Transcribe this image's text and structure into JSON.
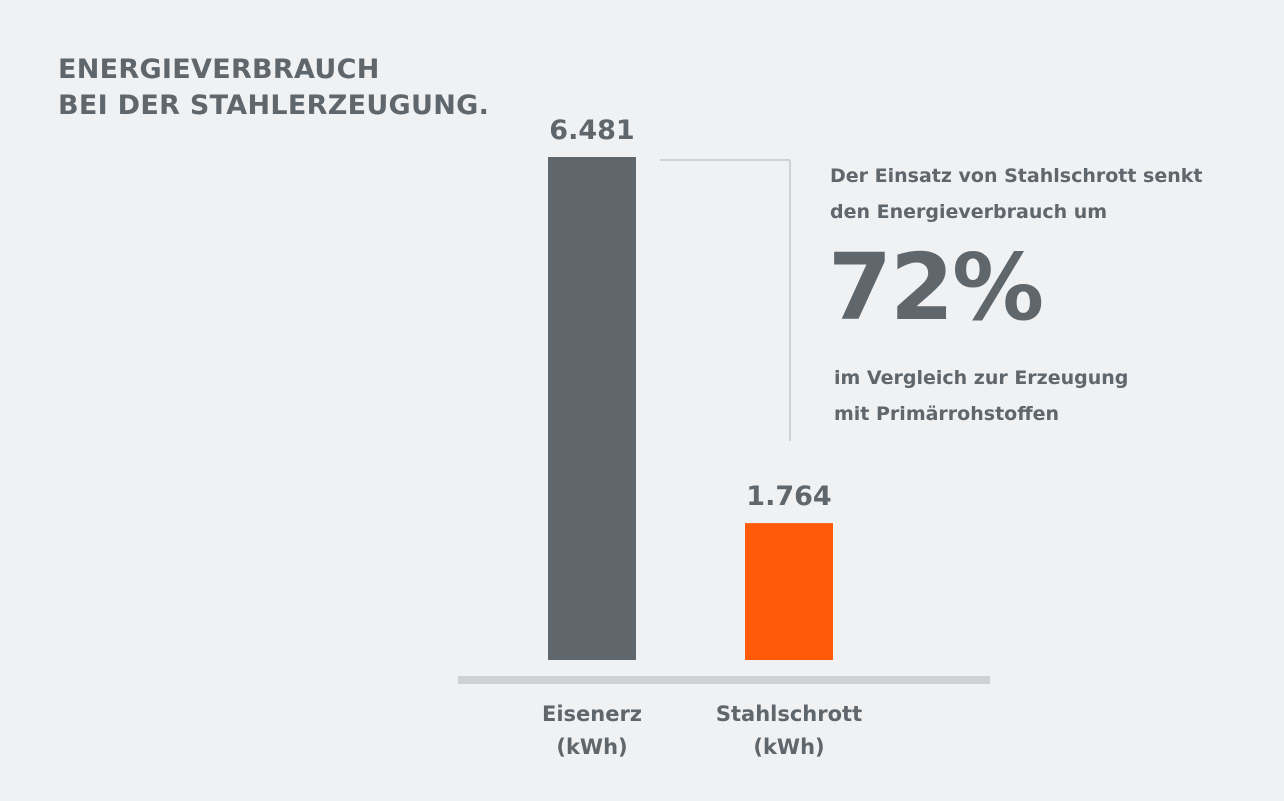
{
  "chart_data": {
    "type": "bar",
    "title": [
      "ENERGIEVERBRAUCH",
      "BEI DER STAHLERZEUGUNG."
    ],
    "categories": [
      [
        "Eisenerz",
        "(kWh)"
      ],
      [
        "Stahlschrott",
        "(kWh)"
      ]
    ],
    "values": [
      6481,
      1764
    ],
    "value_labels": [
      "6.481",
      "1.764"
    ],
    "colors": [
      "#5f666c",
      "#ff5a0a"
    ],
    "xlabel": "",
    "ylabel": "",
    "ylim": [
      0,
      6481
    ],
    "grid": false,
    "annotations": {
      "intro": [
        "Der Einsatz von Stahlschrott senkt",
        "den Energieverbrauch um"
      ],
      "percent": "72%",
      "outro": [
        "im Vergleich zur Erzeugung",
        "mit Primärrohstoffen"
      ]
    }
  }
}
